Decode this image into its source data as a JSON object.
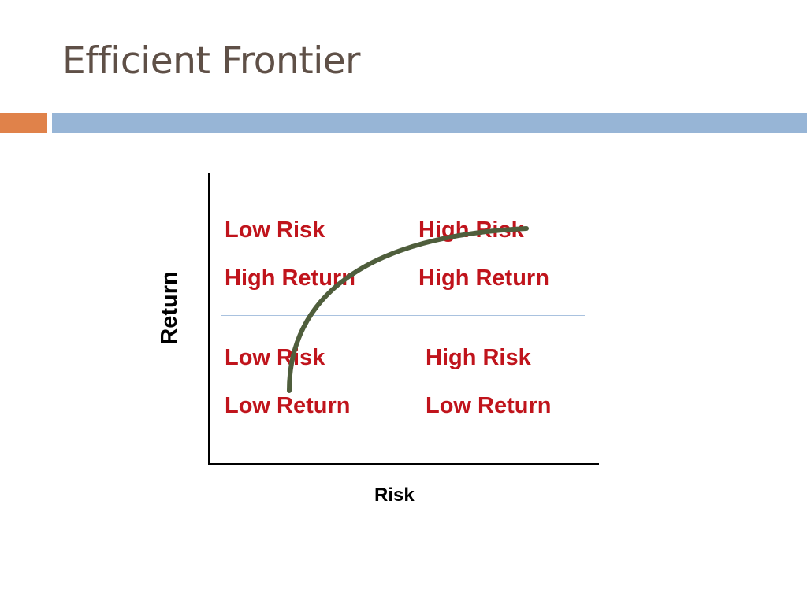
{
  "slide": {
    "title": "Efficient Frontier"
  },
  "diagram": {
    "x_axis_label": "Risk",
    "y_axis_label": "Return",
    "quadrants": {
      "top_left": [
        "Low Risk",
        "High Return"
      ],
      "top_right": [
        "High Risk",
        "High Return"
      ],
      "bottom_left": [
        "Low Risk",
        "Low Return"
      ],
      "bottom_right": [
        "High Risk",
        "Low Return"
      ]
    }
  },
  "colors": {
    "title_text": "#5f5047",
    "accent_bar": "#e0824a",
    "rule_bar": "#97b5d6",
    "quadrant_text": "#c0141c",
    "divider_lines": "#a9c2df",
    "frontier_curve": "#4f5e3c"
  }
}
